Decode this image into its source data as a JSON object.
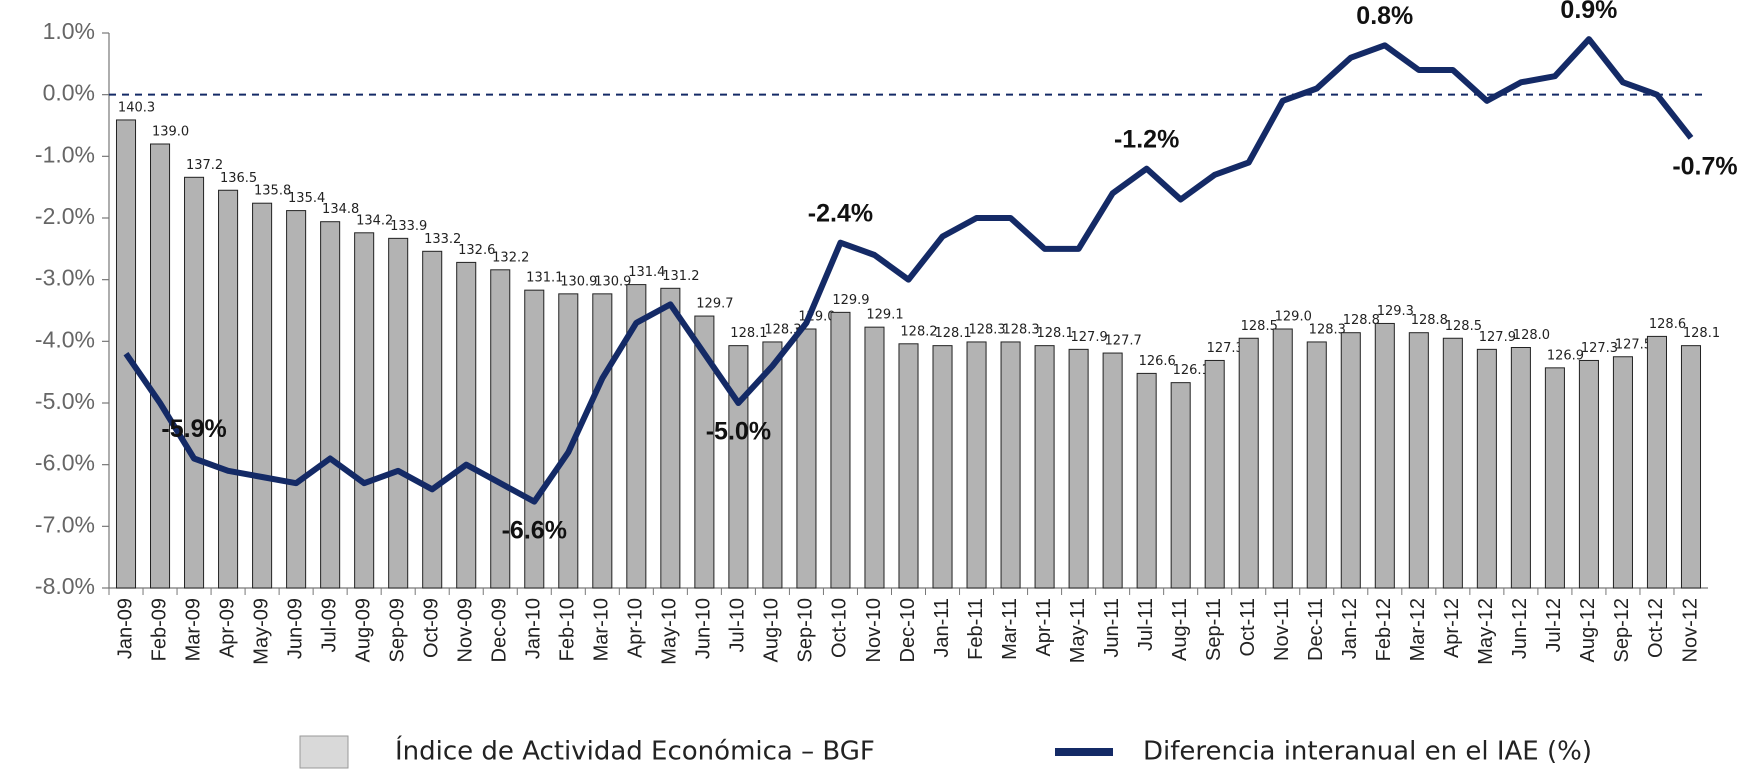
{
  "chart_data": {
    "type": "bar-line",
    "categories": [
      "Jan-09",
      "Feb-09",
      "Mar-09",
      "Apr-09",
      "May-09",
      "Jun-09",
      "Jul-09",
      "Aug-09",
      "Sep-09",
      "Oct-09",
      "Nov-09",
      "Dec-09",
      "Jan-10",
      "Feb-10",
      "Mar-10",
      "Apr-10",
      "May-10",
      "Jun-10",
      "Jul-10",
      "Aug-10",
      "Sep-10",
      "Oct-10",
      "Nov-10",
      "Dec-10",
      "Jan-11",
      "Feb-11",
      "Mar-11",
      "Apr-11",
      "May-11",
      "Jun-11",
      "Jul-11",
      "Aug-11",
      "Sep-11",
      "Oct-11",
      "Nov-11",
      "Dec-11",
      "Jan-12",
      "Feb-12",
      "Mar-12",
      "Apr-12",
      "May-12",
      "Jun-12",
      "Jul-12",
      "Aug-12",
      "Sep-12",
      "Oct-12",
      "Nov-12"
    ],
    "series": [
      {
        "name": "Índice de Actividad Económica – BGF",
        "type": "bar",
        "axis": "y2",
        "color": "#b3b3b3",
        "values": [
          140.3,
          139.0,
          137.2,
          136.5,
          135.8,
          135.4,
          134.8,
          134.2,
          133.9,
          133.2,
          132.6,
          132.2,
          131.1,
          130.9,
          130.9,
          131.4,
          131.2,
          129.7,
          128.1,
          128.3,
          129.0,
          129.9,
          129.1,
          128.2,
          128.1,
          128.3,
          128.3,
          128.1,
          127.9,
          127.7,
          126.6,
          126.1,
          127.3,
          128.5,
          129.0,
          128.3,
          128.8,
          129.3,
          128.8,
          128.5,
          127.9,
          128.0,
          126.9,
          127.3,
          127.5,
          128.6,
          128.1
        ],
        "value_labels": [
          "140.3",
          "139.0",
          "137.2",
          "136.5",
          "135.8",
          "135.4",
          "134.8",
          "134.2",
          "133.9",
          "133.2",
          "132.6",
          "132.2",
          "131.1",
          "130.9",
          "130.9",
          "131.4",
          "131.2",
          "129.7",
          "128.1",
          "128.3",
          "129.0",
          "129.9",
          "129.1",
          "128.2",
          "128.1",
          "128.3",
          "128.3",
          "128.1",
          "127.9",
          "127.7",
          "126.6",
          "126.1",
          "127.3",
          "128.5",
          "129.0",
          "128.3",
          "128.8",
          "129.3",
          "128.8",
          "128.5",
          "127.9",
          "128.0",
          "126.9",
          "127.3",
          "127.5",
          "128.6",
          "128.1"
        ]
      },
      {
        "name": "Diferencia interanual en el IAE (%)",
        "type": "line",
        "color": "#142a66",
        "values": [
          -4.2,
          -5.0,
          -5.9,
          -6.1,
          -6.2,
          -6.3,
          -5.9,
          -6.3,
          -6.1,
          -6.4,
          -6.0,
          -6.3,
          -6.6,
          -5.8,
          -4.6,
          -3.7,
          -3.4,
          -4.2,
          -5.0,
          -4.4,
          -3.7,
          -2.4,
          -2.6,
          -3.0,
          -2.3,
          -2.0,
          -2.0,
          -2.5,
          -2.5,
          -1.6,
          -1.2,
          -1.7,
          -1.3,
          -1.1,
          -0.1,
          0.1,
          0.6,
          0.8,
          0.4,
          0.4,
          -0.1,
          0.2,
          0.3,
          0.9,
          0.2,
          0.0,
          -0.7
        ],
        "value_labels": [
          null,
          null,
          "-5.9%",
          null,
          null,
          null,
          null,
          null,
          null,
          null,
          null,
          null,
          "-6.6%",
          null,
          null,
          null,
          null,
          null,
          "-5.0%",
          null,
          null,
          "-2.4%",
          null,
          null,
          null,
          null,
          null,
          null,
          null,
          null,
          "-1.2%",
          null,
          null,
          null,
          null,
          null,
          null,
          "0.8%",
          null,
          null,
          null,
          null,
          null,
          "0.9%",
          null,
          null,
          "-0.7%"
        ]
      }
    ],
    "ylim": [
      -8,
      1
    ],
    "yticks": [
      {
        "value": 1,
        "label": "1.0%"
      },
      {
        "value": 0,
        "label": "0.0%"
      },
      {
        "value": -1,
        "label": "-1.0%"
      },
      {
        "value": -2,
        "label": "-2.0%"
      },
      {
        "value": -3,
        "label": "-3.0%"
      },
      {
        "value": -4,
        "label": "-4.0%"
      },
      {
        "value": -5,
        "label": "-5.0%"
      },
      {
        "value": -6,
        "label": "-6.0%"
      },
      {
        "value": -7,
        "label": "-7.0%"
      },
      {
        "value": -8,
        "label": "-8.0%"
      }
    ],
    "y2lim": [
      115,
      145
    ],
    "hline": 0,
    "legend": "bottom"
  }
}
